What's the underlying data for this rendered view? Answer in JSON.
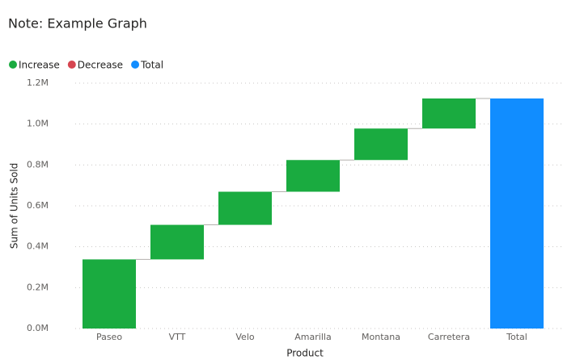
{
  "chart_data": {
    "type": "waterfall",
    "title": "Note: Example Graph",
    "legend": [
      {
        "name": "Increase",
        "color": "#1aab40"
      },
      {
        "name": "Decrease",
        "color": "#d64550"
      },
      {
        "name": "Total",
        "color": "#118dff"
      }
    ],
    "categories": [
      "Paseo",
      "VTT",
      "Velo",
      "Amarilla",
      "Montana",
      "Carretera"
    ],
    "values": [
      338000,
      169000,
      162000,
      155000,
      154000,
      147000
    ],
    "total_label": "Total",
    "total": 1125000,
    "x_label": "Product",
    "y_label": "Sum of Units Sold",
    "ylim": [
      0,
      1200000
    ],
    "yticks": [
      {
        "value": 0,
        "label": "0.0M"
      },
      {
        "value": 200000,
        "label": "0.2M"
      },
      {
        "value": 400000,
        "label": "0.4M"
      },
      {
        "value": 600000,
        "label": "0.6M"
      },
      {
        "value": 800000,
        "label": "0.8M"
      },
      {
        "value": 1000000,
        "label": "1.0M"
      },
      {
        "value": 1200000,
        "label": "1.2M"
      }
    ],
    "grid": true
  }
}
